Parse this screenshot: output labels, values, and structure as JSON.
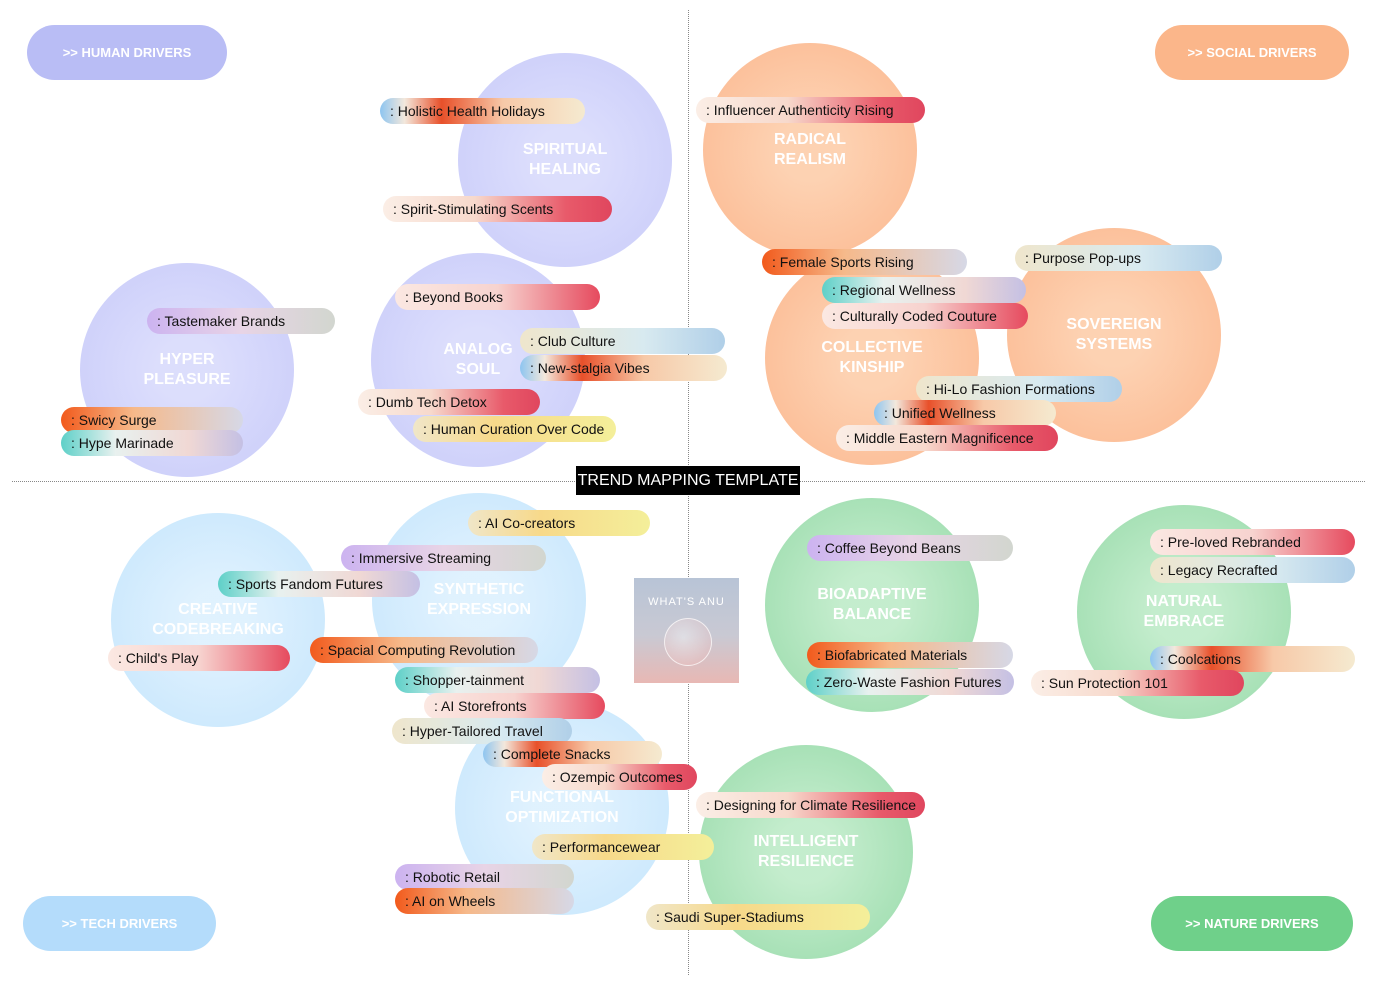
{
  "title": "TREND MAPPING TEMPLATE",
  "logo": "WHAT'S ANU",
  "drivers": [
    ">> HUMAN DRIVERS",
    ">> SOCIAL DRIVERS",
    ">> TECH DRIVERS",
    ">> NATURE DRIVERS"
  ],
  "clusters": [
    {
      "label": "SPIRITUAL HEALING",
      "trends": [
        ": Holistic Health Holidays",
        ": Spirit-Stimulating Scents"
      ]
    },
    {
      "label": "HYPER PLEASURE",
      "trends": [
        ": Tastemaker Brands",
        ": Swicy Surge",
        ": Hype Marinade"
      ]
    },
    {
      "label": "ANALOG SOUL",
      "trends": [
        ": Beyond Books",
        ": Club Culture",
        ": New-stalgia Vibes",
        ": Dumb Tech Detox",
        ": Human Curation Over Code"
      ]
    },
    {
      "label": "RADICAL REALISM",
      "trends": [
        ": Influencer Authenticity Rising"
      ]
    },
    {
      "label": "COLLECTIVE KINSHIP",
      "trends": [
        ": Female Sports Rising",
        ": Regional Wellness",
        ": Culturally Coded Couture",
        ": Hi-Lo Fashion Formations",
        ": Unified Wellness",
        ": Middle Eastern Magnificence"
      ]
    },
    {
      "label": "SOVEREIGN SYSTEMS",
      "trends": [
        ": Purpose Pop-ups"
      ]
    },
    {
      "label": "SYNTHETIC EXPRESSION",
      "trends": [
        ": AI Co-creators",
        ": Immersive Streaming",
        ": Spacial Computing Revolution",
        ": Shopper-tainment",
        ": AI Storefronts",
        ": Hyper-Tailored Travel"
      ]
    },
    {
      "label": "CREATIVE CODEBREAKING",
      "trends": [
        ": Sports Fandom Futures",
        ": Child's Play"
      ]
    },
    {
      "label": "FUNCTIONAL OPTIMIZATION",
      "trends": [
        ": Complete Snacks",
        ": Ozempic Outcomes",
        ": Performancewear",
        ": Robotic Retail",
        ": AI on Wheels"
      ]
    },
    {
      "label": "BIOADAPTIVE BALANCE",
      "trends": [
        ": Coffee Beyond Beans",
        ": Biofabricated Materials",
        ": Zero-Waste Fashion Futures"
      ]
    },
    {
      "label": "NATURAL EMBRACE",
      "trends": [
        ": Pre-loved Rebranded",
        ": Legacy Recrafted",
        ": Coolcations",
        ": Sun Protection 101"
      ]
    },
    {
      "label": "INTELLIGENT RESILIENCE",
      "trends": [
        ": Designing for Climate Resilience",
        ": Saudi Super-Stadiums"
      ]
    }
  ]
}
